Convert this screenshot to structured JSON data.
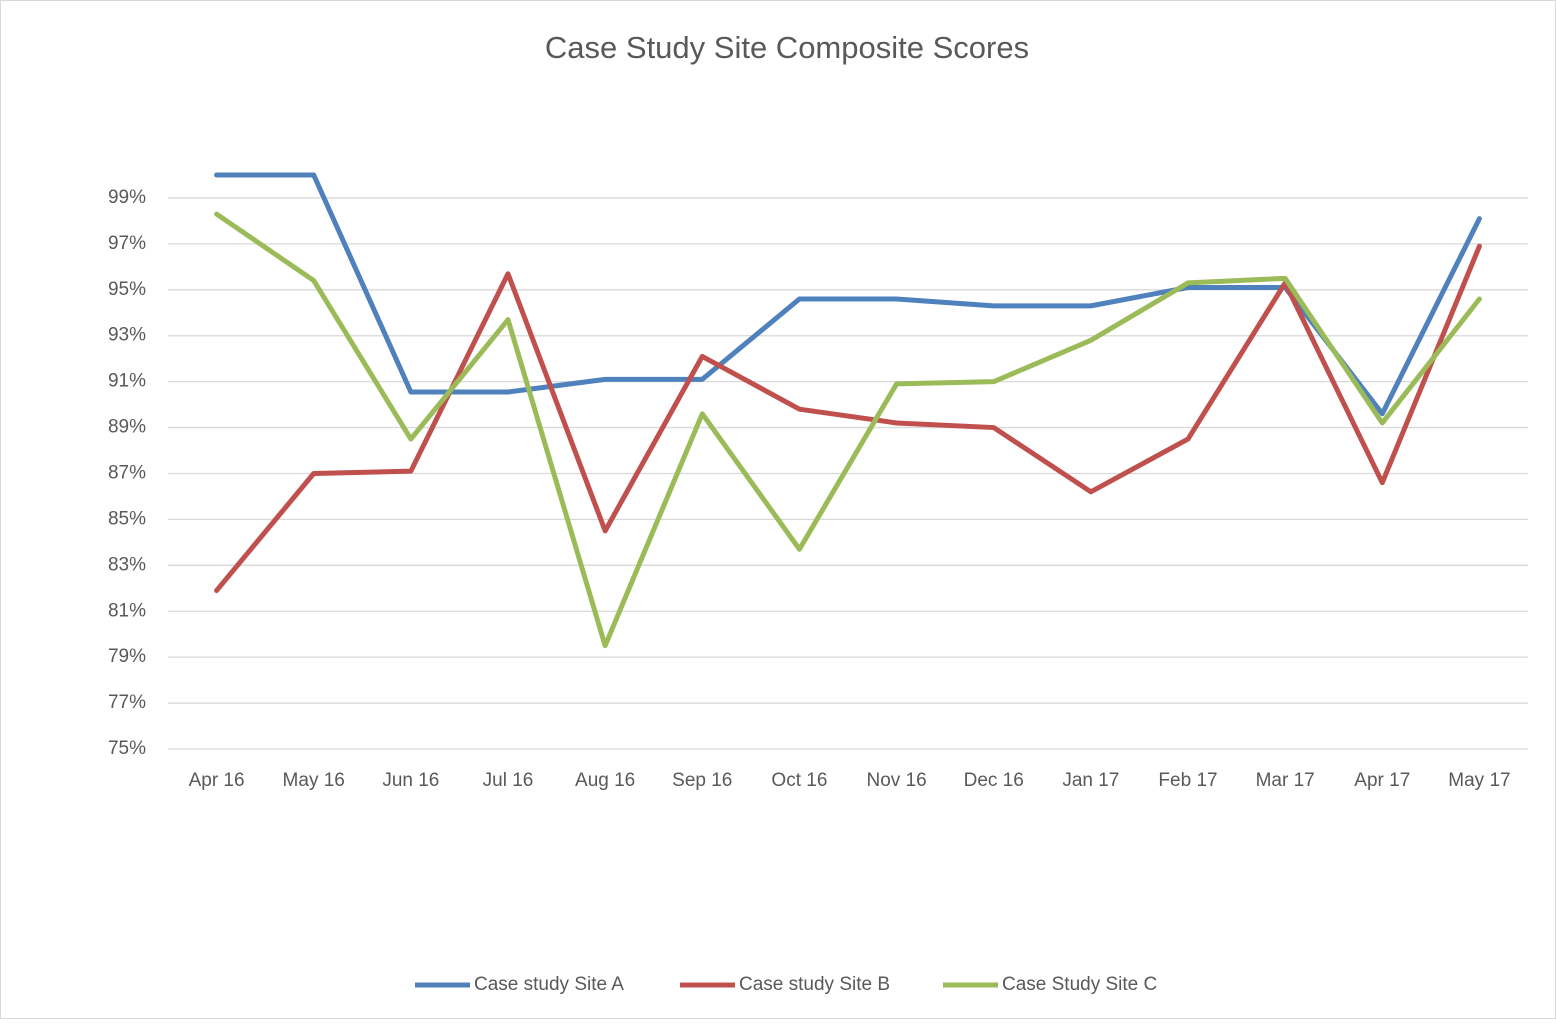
{
  "chart_data": {
    "type": "line",
    "title": "Case Study Site Composite Scores",
    "categories": [
      "Apr 16",
      "May 16",
      "Jun 16",
      "Jul 16",
      "Aug 16",
      "Sep 16",
      "Oct 16",
      "Nov 16",
      "Dec 16",
      "Jan 17",
      "Feb 17",
      "Mar 17",
      "Apr 17",
      "May 17"
    ],
    "series": [
      {
        "name": "Case study Site A",
        "color": "#4f81bd",
        "values": [
          100,
          100,
          90.55,
          90.55,
          91.1,
          91.1,
          94.6,
          94.6,
          94.3,
          94.3,
          95.1,
          95.1,
          89.6,
          98.1
        ]
      },
      {
        "name": "Case study Site B",
        "color": "#c0504d",
        "values": [
          81.9,
          87.0,
          87.1,
          95.7,
          84.5,
          92.1,
          89.8,
          89.2,
          89.0,
          86.2,
          88.5,
          95.3,
          86.6,
          96.9
        ]
      },
      {
        "name": "Case Study Site C",
        "color": "#9bbb59",
        "values": [
          98.3,
          95.4,
          88.5,
          93.7,
          79.5,
          89.6,
          83.7,
          90.9,
          91.0,
          92.8,
          95.3,
          95.5,
          89.2,
          94.6
        ]
      }
    ],
    "ylim": [
      75,
      100
    ],
    "yticks": [
      {
        "value": 75,
        "label": "75%"
      },
      {
        "value": 77,
        "label": "77%"
      },
      {
        "value": 79,
        "label": "79%"
      },
      {
        "value": 81,
        "label": "81%"
      },
      {
        "value": 83,
        "label": "83%"
      },
      {
        "value": 85,
        "label": "85%"
      },
      {
        "value": 87,
        "label": "87%"
      },
      {
        "value": 89,
        "label": "89%"
      },
      {
        "value": 91,
        "label": "91%"
      },
      {
        "value": 93,
        "label": "93%"
      },
      {
        "value": 95,
        "label": "95%"
      },
      {
        "value": 97,
        "label": "97%"
      },
      {
        "value": 99,
        "label": "99%"
      }
    ],
    "grid": true,
    "legend": "bottom"
  }
}
